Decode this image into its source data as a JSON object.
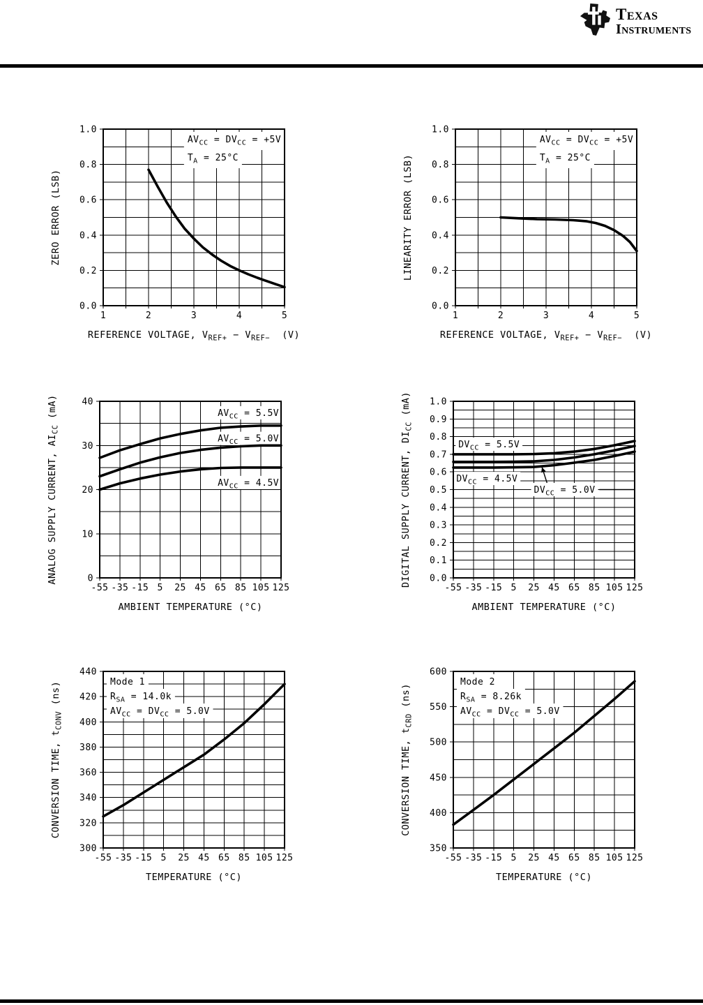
{
  "brand": {
    "name_line1": "Texas",
    "name_line2": "Instruments",
    "logo_icon": "ti-texas-logo-icon"
  },
  "colors": {
    "ink": "#000000",
    "paper": "#ffffff"
  },
  "chart_data": [
    {
      "id": "zero-error-vs-reference-voltage",
      "type": "line",
      "title": "",
      "ylabel": "ZERO ERROR (LSB)",
      "xlabel": "REFERENCE VOLTAGE, V~REF+~ − V~REF−~  (V)",
      "xlim": [
        1,
        5
      ],
      "ylim": [
        0,
        1
      ],
      "xticks": [
        1,
        2,
        3,
        4,
        5
      ],
      "xtick_labels": [
        "1",
        "2",
        "3",
        "4",
        "5"
      ],
      "yticks": [
        0,
        0.2,
        0.4,
        0.6,
        0.8,
        1
      ],
      "ytick_labels": [
        "0.0",
        "0.2",
        "0.4",
        "0.6",
        "0.8",
        "1.0"
      ],
      "x_grid_step": 0.5,
      "y_grid_step": 0.1,
      "grid": true,
      "note_box": {
        "pos": "top-right",
        "lines": [
          "AV~CC~ = DV~CC~ = +5V",
          "T~A~ = 25°C"
        ]
      },
      "series": [
        {
          "name": "zero error",
          "points": [
            [
              2,
              0.77
            ],
            [
              2.2,
              0.675
            ],
            [
              2.4,
              0.585
            ],
            [
              2.6,
              0.505
            ],
            [
              2.8,
              0.435
            ],
            [
              3,
              0.38
            ],
            [
              3.2,
              0.33
            ],
            [
              3.4,
              0.29
            ],
            [
              3.6,
              0.255
            ],
            [
              3.8,
              0.225
            ],
            [
              4,
              0.2
            ],
            [
              4.2,
              0.178
            ],
            [
              4.4,
              0.158
            ],
            [
              4.6,
              0.14
            ],
            [
              4.8,
              0.122
            ],
            [
              5,
              0.105
            ]
          ]
        }
      ]
    },
    {
      "id": "linearity-error-vs-reference-voltage",
      "type": "line",
      "title": "",
      "ylabel": "LINEARITY ERROR (LSB)",
      "xlabel": "REFERENCE VOLTAGE, V~REF+~ − V~REF−~  (V)",
      "xlim": [
        1,
        5
      ],
      "ylim": [
        0,
        1
      ],
      "xticks": [
        1,
        2,
        3,
        4,
        5
      ],
      "xtick_labels": [
        "1",
        "2",
        "3",
        "4",
        "5"
      ],
      "yticks": [
        0,
        0.2,
        0.4,
        0.6,
        0.8,
        1
      ],
      "ytick_labels": [
        "0.0",
        "0.2",
        "0.4",
        "0.6",
        "0.8",
        "1.0"
      ],
      "x_grid_step": 0.5,
      "y_grid_step": 0.1,
      "grid": true,
      "note_box": {
        "pos": "top-right",
        "lines": [
          "AV~CC~ = DV~CC~ = +5V",
          "T~A~ = 25°C"
        ]
      },
      "series": [
        {
          "name": "linearity error",
          "points": [
            [
              2,
              0.5
            ],
            [
              2.4,
              0.495
            ],
            [
              2.8,
              0.49
            ],
            [
              3.2,
              0.488
            ],
            [
              3.6,
              0.484
            ],
            [
              3.9,
              0.478
            ],
            [
              4.1,
              0.468
            ],
            [
              4.3,
              0.452
            ],
            [
              4.5,
              0.428
            ],
            [
              4.7,
              0.395
            ],
            [
              4.85,
              0.36
            ],
            [
              5,
              0.31
            ]
          ]
        }
      ]
    },
    {
      "id": "analog-supply-current-vs-temperature",
      "type": "line",
      "title": "",
      "ylabel": "ANALOG SUPPLY CURRENT, AI~CC~ (mA)",
      "xlabel": "AMBIENT TEMPERATURE (°C)",
      "xlim": [
        -55,
        125
      ],
      "ylim": [
        0,
        40
      ],
      "xticks": [
        -55,
        -35,
        -15,
        5,
        25,
        45,
        65,
        85,
        105,
        125
      ],
      "xtick_labels": [
        "-55",
        "-35",
        "-15",
        "5",
        "25",
        "45",
        "65",
        "85",
        "105",
        "125"
      ],
      "yticks": [
        0,
        10,
        20,
        30,
        40
      ],
      "ytick_labels": [
        "0",
        "10",
        "20",
        "30",
        "40"
      ],
      "x_grid_step": 20,
      "y_grid_step": 5,
      "grid": true,
      "series": [
        {
          "name": "AV~CC~ = 5.5V",
          "points": [
            [
              -55,
              27.2
            ],
            [
              -35,
              28.9
            ],
            [
              -15,
              30.3
            ],
            [
              5,
              31.6
            ],
            [
              25,
              32.6
            ],
            [
              45,
              33.4
            ],
            [
              65,
              34
            ],
            [
              85,
              34.3
            ],
            [
              105,
              34.5
            ],
            [
              125,
              34.5
            ]
          ]
        },
        {
          "name": "AV~CC~ = 5.0V",
          "points": [
            [
              -55,
              23
            ],
            [
              -35,
              24.6
            ],
            [
              -15,
              26.1
            ],
            [
              5,
              27.3
            ],
            [
              25,
              28.3
            ],
            [
              45,
              29
            ],
            [
              65,
              29.5
            ],
            [
              85,
              29.8
            ],
            [
              105,
              30
            ],
            [
              125,
              30
            ]
          ]
        },
        {
          "name": "AV~CC~ = 4.5V",
          "points": [
            [
              -55,
              20
            ],
            [
              -35,
              21.4
            ],
            [
              -15,
              22.5
            ],
            [
              5,
              23.4
            ],
            [
              25,
              24.1
            ],
            [
              45,
              24.6
            ],
            [
              65,
              24.9
            ],
            [
              85,
              25
            ],
            [
              105,
              25
            ],
            [
              125,
              25
            ]
          ]
        }
      ],
      "curve_labels": [
        {
          "text": "AV~CC~ = 5.5V",
          "x": 123,
          "y": 37.4,
          "anchor": "end"
        },
        {
          "text": "AV~CC~ = 5.0V",
          "x": 123,
          "y": 31.6,
          "anchor": "end"
        },
        {
          "text": "AV~CC~ = 4.5V",
          "x": 123,
          "y": 21.6,
          "anchor": "end"
        }
      ]
    },
    {
      "id": "digital-supply-current-vs-temperature",
      "type": "line",
      "title": "",
      "ylabel": "DIGITAL SUPPLY CURRENT, DI~CC~ (mA)",
      "xlabel": "AMBIENT TEMPERATURE (°C)",
      "xlim": [
        -55,
        125
      ],
      "ylim": [
        0,
        1
      ],
      "xticks": [
        -55,
        -35,
        -15,
        5,
        25,
        45,
        65,
        85,
        105,
        125
      ],
      "xtick_labels": [
        "-55",
        "-35",
        "-15",
        "5",
        "25",
        "45",
        "65",
        "85",
        "105",
        "125"
      ],
      "yticks": [
        0,
        0.1,
        0.2,
        0.3,
        0.4,
        0.5,
        0.6,
        0.7,
        0.8,
        0.9,
        1
      ],
      "ytick_labels": [
        "0.0",
        "0.1",
        "0.2",
        "0.3",
        "0.4",
        "0.5",
        "0.6",
        "0.7",
        "0.8",
        "0.9",
        "1.0"
      ],
      "x_grid_step": 20,
      "y_grid_step": 0.05,
      "grid": true,
      "series": [
        {
          "name": "DV~CC~ = 5.5V",
          "points": [
            [
              -55,
              0.7
            ],
            [
              -15,
              0.7
            ],
            [
              5,
              0.7
            ],
            [
              25,
              0.701
            ],
            [
              45,
              0.706
            ],
            [
              65,
              0.715
            ],
            [
              85,
              0.73
            ],
            [
              105,
              0.751
            ],
            [
              125,
              0.775
            ]
          ]
        },
        {
          "name": "DV~CC~ = 5.0V",
          "points": [
            [
              -55,
              0.657
            ],
            [
              -15,
              0.657
            ],
            [
              5,
              0.658
            ],
            [
              25,
              0.66
            ],
            [
              45,
              0.668
            ],
            [
              65,
              0.682
            ],
            [
              85,
              0.7
            ],
            [
              105,
              0.722
            ],
            [
              125,
              0.747
            ]
          ]
        },
        {
          "name": "DV~CC~ = 4.5V",
          "points": [
            [
              -55,
              0.625
            ],
            [
              -15,
              0.625
            ],
            [
              5,
              0.626
            ],
            [
              25,
              0.628
            ],
            [
              45,
              0.638
            ],
            [
              65,
              0.652
            ],
            [
              85,
              0.668
            ],
            [
              105,
              0.69
            ],
            [
              125,
              0.715
            ]
          ]
        }
      ],
      "curve_labels": [
        {
          "text": "DV~CC~ = 5.5V",
          "x": -50,
          "y": 0.757,
          "anchor": "start"
        },
        {
          "text": "DV~CC~ = 4.5V",
          "x": -52,
          "y": 0.563,
          "anchor": "start"
        },
        {
          "text": "DV~CC~ = 5.0V",
          "x": 25,
          "y": 0.5,
          "anchor": "start",
          "rule_right": true,
          "arrow": {
            "x1": 38,
            "y1": 0.538,
            "x2": 33,
            "y2": 0.627
          }
        }
      ]
    },
    {
      "id": "conversion-time-mode1-vs-temperature",
      "type": "line",
      "title": "",
      "ylabel": "CONVERSION TIME, t~CONV~ (ns)",
      "xlabel": "TEMPERATURE (°C)",
      "xlim": [
        -55,
        125
      ],
      "ylim": [
        300,
        440
      ],
      "xticks": [
        -55,
        -35,
        -15,
        5,
        25,
        45,
        65,
        85,
        105,
        125
      ],
      "xtick_labels": [
        "-55",
        "-35",
        "-15",
        "5",
        "25",
        "45",
        "65",
        "85",
        "105",
        "125"
      ],
      "yticks": [
        300,
        320,
        340,
        360,
        380,
        400,
        420,
        440
      ],
      "ytick_labels": [
        "300",
        "320",
        "340",
        "360",
        "380",
        "400",
        "420",
        "440"
      ],
      "x_grid_step": 20,
      "y_grid_step": 10,
      "grid": true,
      "note_box": {
        "pos": "top-left",
        "lines": [
          "Mode 1",
          "R~SA~ = 14.0k",
          "AV~CC~ = DV~CC~ = 5.0V"
        ]
      },
      "series": [
        {
          "name": "t~CONV~",
          "points": [
            [
              -55,
              325
            ],
            [
              -35,
              334
            ],
            [
              -15,
              344
            ],
            [
              5,
              354
            ],
            [
              25,
              364
            ],
            [
              45,
              374
            ],
            [
              65,
              386
            ],
            [
              85,
              399
            ],
            [
              105,
              414
            ],
            [
              125,
              430
            ]
          ]
        }
      ]
    },
    {
      "id": "conversion-time-mode2-vs-temperature",
      "type": "line",
      "title": "",
      "ylabel": "CONVERSION TIME, t~CRD~ (ns)",
      "xlabel": "TEMPERATURE (°C)",
      "xlim": [
        -55,
        125
      ],
      "ylim": [
        350,
        600
      ],
      "xticks": [
        -55,
        -35,
        -15,
        5,
        25,
        45,
        65,
        85,
        105,
        125
      ],
      "xtick_labels": [
        "-55",
        "-35",
        "-15",
        "5",
        "25",
        "45",
        "65",
        "85",
        "105",
        "125"
      ],
      "yticks": [
        350,
        400,
        450,
        500,
        550,
        600
      ],
      "ytick_labels": [
        "350",
        "400",
        "450",
        "500",
        "550",
        "600"
      ],
      "x_grid_step": 20,
      "y_grid_step": 25,
      "grid": true,
      "note_box": {
        "pos": "top-left",
        "lines": [
          "Mode 2",
          "R~SA~ = 8.26k",
          "AV~CC~ = DV~CC~ = 5.0V"
        ]
      },
      "series": [
        {
          "name": "t~CRD~",
          "points": [
            [
              -55,
              383
            ],
            [
              -35,
              404
            ],
            [
              -15,
              425
            ],
            [
              5,
              447
            ],
            [
              25,
              469
            ],
            [
              45,
              491
            ],
            [
              65,
              513
            ],
            [
              85,
              537
            ],
            [
              105,
              561
            ],
            [
              125,
              586
            ]
          ]
        }
      ]
    }
  ]
}
